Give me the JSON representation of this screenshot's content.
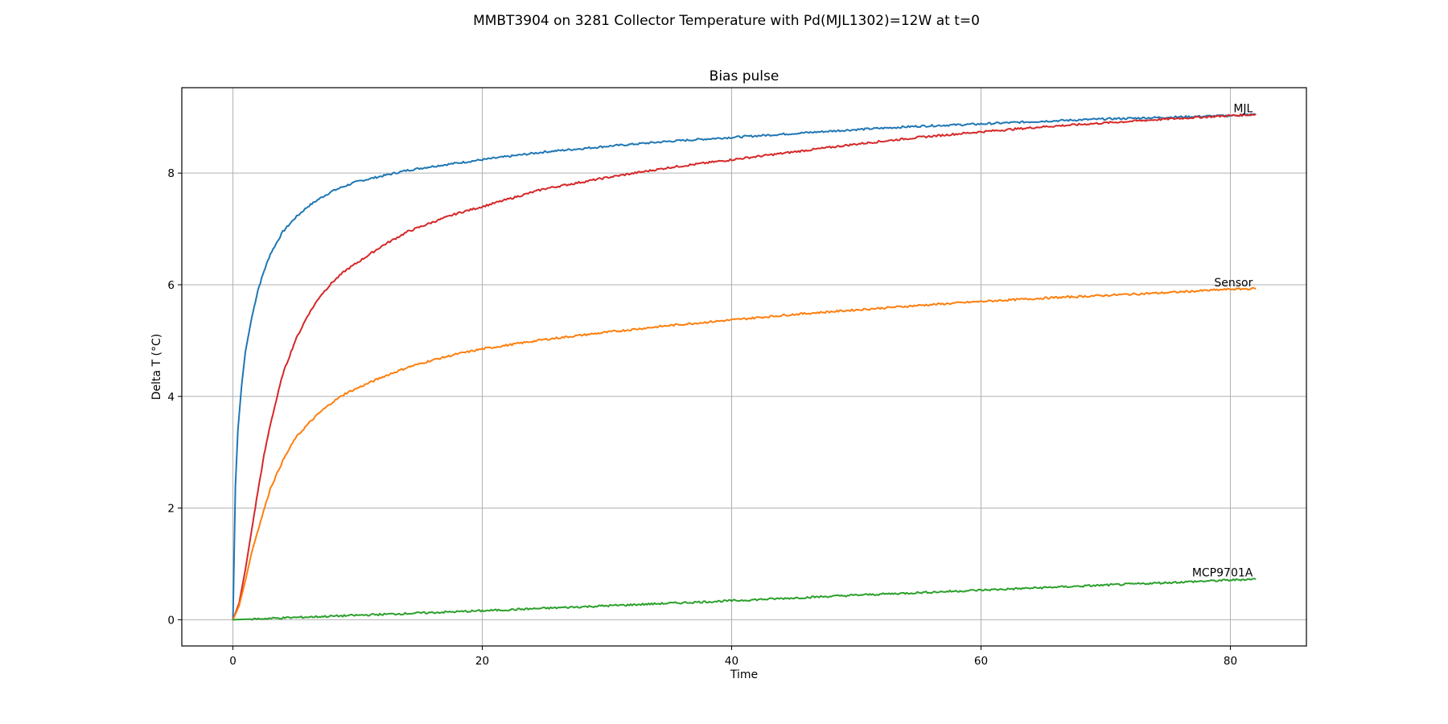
{
  "chart_data": {
    "type": "line",
    "suptitle": "MMBT3904 on 3281 Collector Temperature with Pd(MJL1302)=12W at t=0",
    "title": "Bias pulse",
    "xlabel": "Time",
    "ylabel": "Delta T (°C)",
    "xlim": [
      -4.1,
      86.1
    ],
    "ylim": [
      -0.47,
      9.53
    ],
    "xticks": [
      0,
      20,
      40,
      60,
      80
    ],
    "yticks": [
      0,
      2,
      4,
      6,
      8
    ],
    "grid": true,
    "series": [
      {
        "color": "#1f77b4",
        "x": [
          0,
          0.2,
          0.4,
          0.7,
          1,
          1.5,
          2,
          2.5,
          3,
          4,
          5,
          6,
          7,
          8,
          9,
          10,
          12,
          14,
          16,
          18,
          20,
          25,
          30,
          35,
          40,
          45,
          50,
          55,
          60,
          65,
          70,
          75,
          80,
          82
        ],
        "y": [
          0,
          2.4,
          3.4,
          4.2,
          4.8,
          5.4,
          5.9,
          6.25,
          6.55,
          6.95,
          7.2,
          7.4,
          7.55,
          7.68,
          7.77,
          7.85,
          7.95,
          8.05,
          8.12,
          8.18,
          8.24,
          8.38,
          8.48,
          8.57,
          8.64,
          8.71,
          8.78,
          8.84,
          8.88,
          8.93,
          8.97,
          9.0,
          9.03,
          9.05
        ]
      },
      {
        "color": "#d62728",
        "x": [
          0,
          0.5,
          1,
          1.5,
          2,
          2.5,
          3,
          4,
          5,
          6,
          7,
          8,
          9,
          10,
          12,
          14,
          16,
          18,
          20,
          25,
          30,
          35,
          40,
          45,
          50,
          55,
          60,
          65,
          70,
          75,
          80,
          82
        ],
        "y": [
          0,
          0.3,
          0.9,
          1.6,
          2.3,
          2.95,
          3.5,
          4.4,
          5.0,
          5.45,
          5.8,
          6.05,
          6.25,
          6.4,
          6.7,
          6.95,
          7.12,
          7.28,
          7.4,
          7.72,
          7.92,
          8.1,
          8.24,
          8.38,
          8.52,
          8.64,
          8.74,
          8.83,
          8.9,
          8.97,
          9.03,
          9.05
        ]
      },
      {
        "name": "Sensor",
        "label": "Sensor",
        "color": "#ff7f0e",
        "x": [
          0,
          0.5,
          1,
          1.5,
          2,
          3,
          4,
          5,
          6,
          7,
          8,
          9,
          10,
          12,
          14,
          16,
          18,
          20,
          25,
          30,
          35,
          40,
          45,
          50,
          55,
          60,
          65,
          70,
          75,
          80,
          82
        ],
        "y": [
          0,
          0.25,
          0.7,
          1.2,
          1.6,
          2.35,
          2.85,
          3.25,
          3.5,
          3.72,
          3.9,
          4.05,
          4.15,
          4.35,
          4.52,
          4.65,
          4.76,
          4.85,
          5.02,
          5.15,
          5.27,
          5.37,
          5.47,
          5.55,
          5.63,
          5.7,
          5.76,
          5.81,
          5.86,
          5.92,
          5.93
        ]
      },
      {
        "name": "MCP9701A",
        "label": "MCP9701A",
        "color": "#2ca02c",
        "x": [
          0,
          5,
          10,
          20,
          30,
          40,
          50,
          60,
          70,
          80,
          82
        ],
        "y": [
          0,
          0.04,
          0.08,
          0.16,
          0.25,
          0.34,
          0.44,
          0.53,
          0.62,
          0.71,
          0.73
        ]
      }
    ],
    "annotations": [
      {
        "text": "MJL",
        "x": 81.8,
        "y": 9.05
      },
      {
        "text": "Sensor",
        "x": 81.8,
        "y": 5.93
      },
      {
        "text": "MCP9701A",
        "x": 81.8,
        "y": 0.73
      }
    ]
  }
}
